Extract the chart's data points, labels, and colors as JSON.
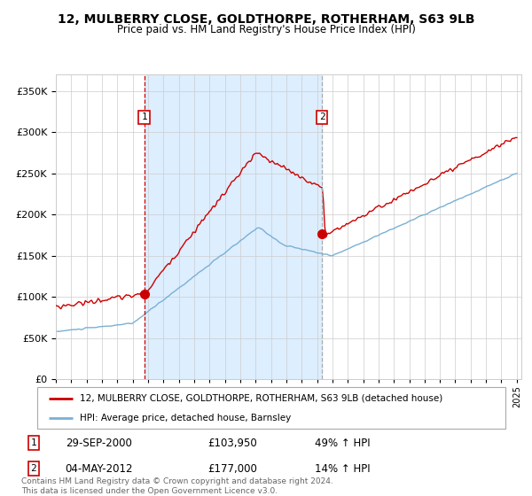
{
  "title": "12, MULBERRY CLOSE, GOLDTHORPE, ROTHERHAM, S63 9LB",
  "subtitle": "Price paid vs. HM Land Registry's House Price Index (HPI)",
  "legend_line1": "12, MULBERRY CLOSE, GOLDTHORPE, ROTHERHAM, S63 9LB (detached house)",
  "legend_line2": "HPI: Average price, detached house, Barnsley",
  "transaction1_date": "29-SEP-2000",
  "transaction1_price": "£103,950",
  "transaction1_hpi": "49% ↑ HPI",
  "transaction2_date": "04-MAY-2012",
  "transaction2_price": "£177,000",
  "transaction2_hpi": "14% ↑ HPI",
  "footer": "Contains HM Land Registry data © Crown copyright and database right 2024.\nThis data is licensed under the Open Government Licence v3.0.",
  "red_color": "#cc0000",
  "blue_color": "#7ab0d4",
  "bg_shaded": "#ddeeff",
  "ylim_min": 0,
  "ylim_max": 370000,
  "x_start_year": 1995,
  "x_end_year": 2025,
  "transaction1_year": 2000.75,
  "transaction2_year": 2012.33,
  "transaction1_value_red": 103950,
  "transaction2_value_red": 177000
}
